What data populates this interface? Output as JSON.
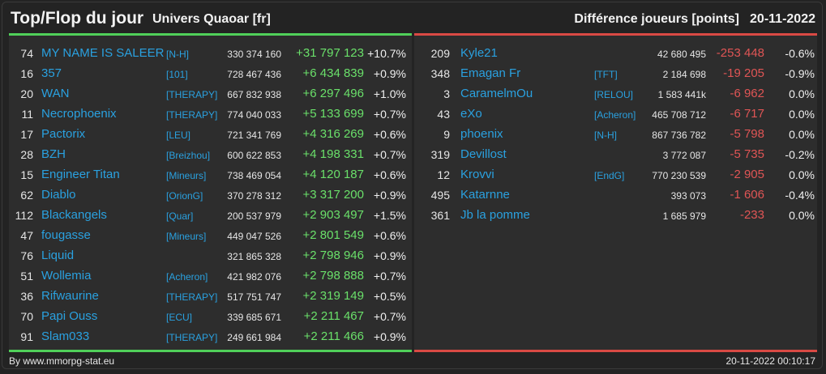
{
  "header": {
    "title": "Top/Flop du jour",
    "subtitle": "Univers Quaoar [fr]",
    "right_title": "Différence joueurs [points]",
    "date": "20-11-2022"
  },
  "colors": {
    "top_accent": "#50d05a",
    "flop_accent": "#d94a44",
    "name_link": "#2aa1e0",
    "positive": "#6ae06a",
    "negative": "#e05555"
  },
  "top": [
    {
      "rank": "74",
      "name": "MY NAME IS SALEER",
      "alliance": "[N-H]",
      "points": "330 374 160",
      "diff": "+31 797 123",
      "pct": "+10.7%"
    },
    {
      "rank": "16",
      "name": "357",
      "alliance": "[101]",
      "points": "728 467 436",
      "diff": "+6 434 839",
      "pct": "+0.9%"
    },
    {
      "rank": "20",
      "name": "WAN",
      "alliance": "[THERAPY]",
      "points": "667 832 938",
      "diff": "+6 297 496",
      "pct": "+1.0%"
    },
    {
      "rank": "11",
      "name": "Necrophoenix",
      "alliance": "[THERAPY]",
      "points": "774 040 033",
      "diff": "+5 133 699",
      "pct": "+0.7%"
    },
    {
      "rank": "17",
      "name": "Pactorix",
      "alliance": "[LEU]",
      "points": "721 341 769",
      "diff": "+4 316 269",
      "pct": "+0.6%"
    },
    {
      "rank": "28",
      "name": "BZH",
      "alliance": "[Breizhou]",
      "points": "600 622 853",
      "diff": "+4 198 331",
      "pct": "+0.7%"
    },
    {
      "rank": "15",
      "name": "Engineer Titan",
      "alliance": "[Mineurs]",
      "points": "738 469 054",
      "diff": "+4 120 187",
      "pct": "+0.6%"
    },
    {
      "rank": "62",
      "name": "Diablo",
      "alliance": "[OrionG]",
      "points": "370 278 312",
      "diff": "+3 317 200",
      "pct": "+0.9%"
    },
    {
      "rank": "112",
      "name": "Blackangels",
      "alliance": "[Quar]",
      "points": "200 537 979",
      "diff": "+2 903 497",
      "pct": "+1.5%"
    },
    {
      "rank": "47",
      "name": "fougasse",
      "alliance": "[Mineurs]",
      "points": "449 047 526",
      "diff": "+2 801 549",
      "pct": "+0.6%"
    },
    {
      "rank": "76",
      "name": "Liquid",
      "alliance": "",
      "points": "321 865 328",
      "diff": "+2 798 946",
      "pct": "+0.9%"
    },
    {
      "rank": "51",
      "name": "Wollemia",
      "alliance": "[Acheron]",
      "points": "421 982 076",
      "diff": "+2 798 888",
      "pct": "+0.7%"
    },
    {
      "rank": "36",
      "name": "Rifwaurine",
      "alliance": "[THERAPY]",
      "points": "517 751 747",
      "diff": "+2 319 149",
      "pct": "+0.5%"
    },
    {
      "rank": "70",
      "name": "Papi Ouss",
      "alliance": "[ECU]",
      "points": "339 685 671",
      "diff": "+2 211 467",
      "pct": "+0.7%"
    },
    {
      "rank": "91",
      "name": "Slam033",
      "alliance": "[THERAPY]",
      "points": "249 661 984",
      "diff": "+2 211 466",
      "pct": "+0.9%"
    }
  ],
  "flop": [
    {
      "rank": "209",
      "name": "Kyle21",
      "alliance": "",
      "points": "42 680 495",
      "diff": "-253 448",
      "pct": "-0.6%"
    },
    {
      "rank": "348",
      "name": "Emagan Fr",
      "alliance": "[TFT]",
      "points": "2 184 698",
      "diff": "-19 205",
      "pct": "-0.9%"
    },
    {
      "rank": "3",
      "name": "CaramelmOu",
      "alliance": "[RELOU]",
      "points": "1 583 441k",
      "diff": "-6 962",
      "pct": "0.0%"
    },
    {
      "rank": "43",
      "name": "eXo",
      "alliance": "[Acheron]",
      "points": "465 708 712",
      "diff": "-6 717",
      "pct": "0.0%"
    },
    {
      "rank": "9",
      "name": "phoenix",
      "alliance": "[N-H]",
      "points": "867 736 782",
      "diff": "-5 798",
      "pct": "0.0%"
    },
    {
      "rank": "319",
      "name": "Devillost",
      "alliance": "",
      "points": "3 772 087",
      "diff": "-5 735",
      "pct": "-0.2%"
    },
    {
      "rank": "12",
      "name": "Krovvi",
      "alliance": "[EndG]",
      "points": "770 230 539",
      "diff": "-2 905",
      "pct": "0.0%"
    },
    {
      "rank": "495",
      "name": "Katarnne",
      "alliance": "",
      "points": "393 073",
      "diff": "-1 606",
      "pct": "-0.4%"
    },
    {
      "rank": "361",
      "name": "Jb la pomme",
      "alliance": "",
      "points": "1 685 979",
      "diff": "-233",
      "pct": "0.0%"
    }
  ],
  "footer": {
    "source": "By www.mmorpg-stat.eu",
    "timestamp": "20-11-2022 00:10:17"
  }
}
